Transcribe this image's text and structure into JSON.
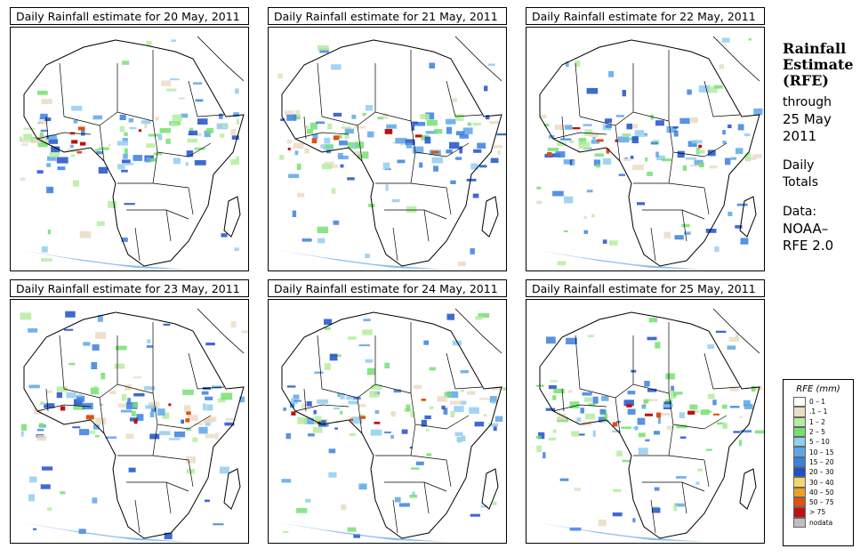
{
  "panels": [
    {
      "title": "Daily Rainfall estimate for  20 May, 2011"
    },
    {
      "title": "Daily Rainfall estimate for  21 May, 2011"
    },
    {
      "title": "Daily Rainfall estimate for  22 May, 2011"
    },
    {
      "title": "Daily Rainfall estimate for  23 May, 2011"
    },
    {
      "title": "Daily Rainfall estimate for  24 May, 2011"
    },
    {
      "title": "Daily Rainfall estimate for  25 May, 2011"
    }
  ],
  "sidebar": {
    "title_line1": "Rainfall",
    "title_line2": "Estimate",
    "title_line3": "(RFE)",
    "through": "through",
    "date_line1": "25 May",
    "date_line2": "2011",
    "daily": "Daily",
    "totals": "Totals",
    "data_label": "Data:",
    "source_line1": "NOAA–",
    "source_line2": "RFE 2.0"
  },
  "legend": {
    "title": "RFE (mm)",
    "items": [
      {
        "label": "0 – 1",
        "color": "#ffffff"
      },
      {
        "label": ".1 – 1",
        "color": "#eadcc5"
      },
      {
        "label": "1 – 2",
        "color": "#b4ed9f"
      },
      {
        "label": "2 – 5",
        "color": "#74e070"
      },
      {
        "label": "5 – 10",
        "color": "#93cdf0"
      },
      {
        "label": "10 – 15",
        "color": "#5ea6e8"
      },
      {
        "label": "15 – 20",
        "color": "#3b7fe0"
      },
      {
        "label": "20 – 30",
        "color": "#1f50c8"
      },
      {
        "label": "30 – 40",
        "color": "#f2d770"
      },
      {
        "label": "40 – 50",
        "color": "#f0a020"
      },
      {
        "label": "50 – 75",
        "color": "#e05010"
      },
      {
        "label": "> 75",
        "color": "#c01010"
      },
      {
        "label": "nodata",
        "color": "#bfbfbf"
      }
    ]
  }
}
